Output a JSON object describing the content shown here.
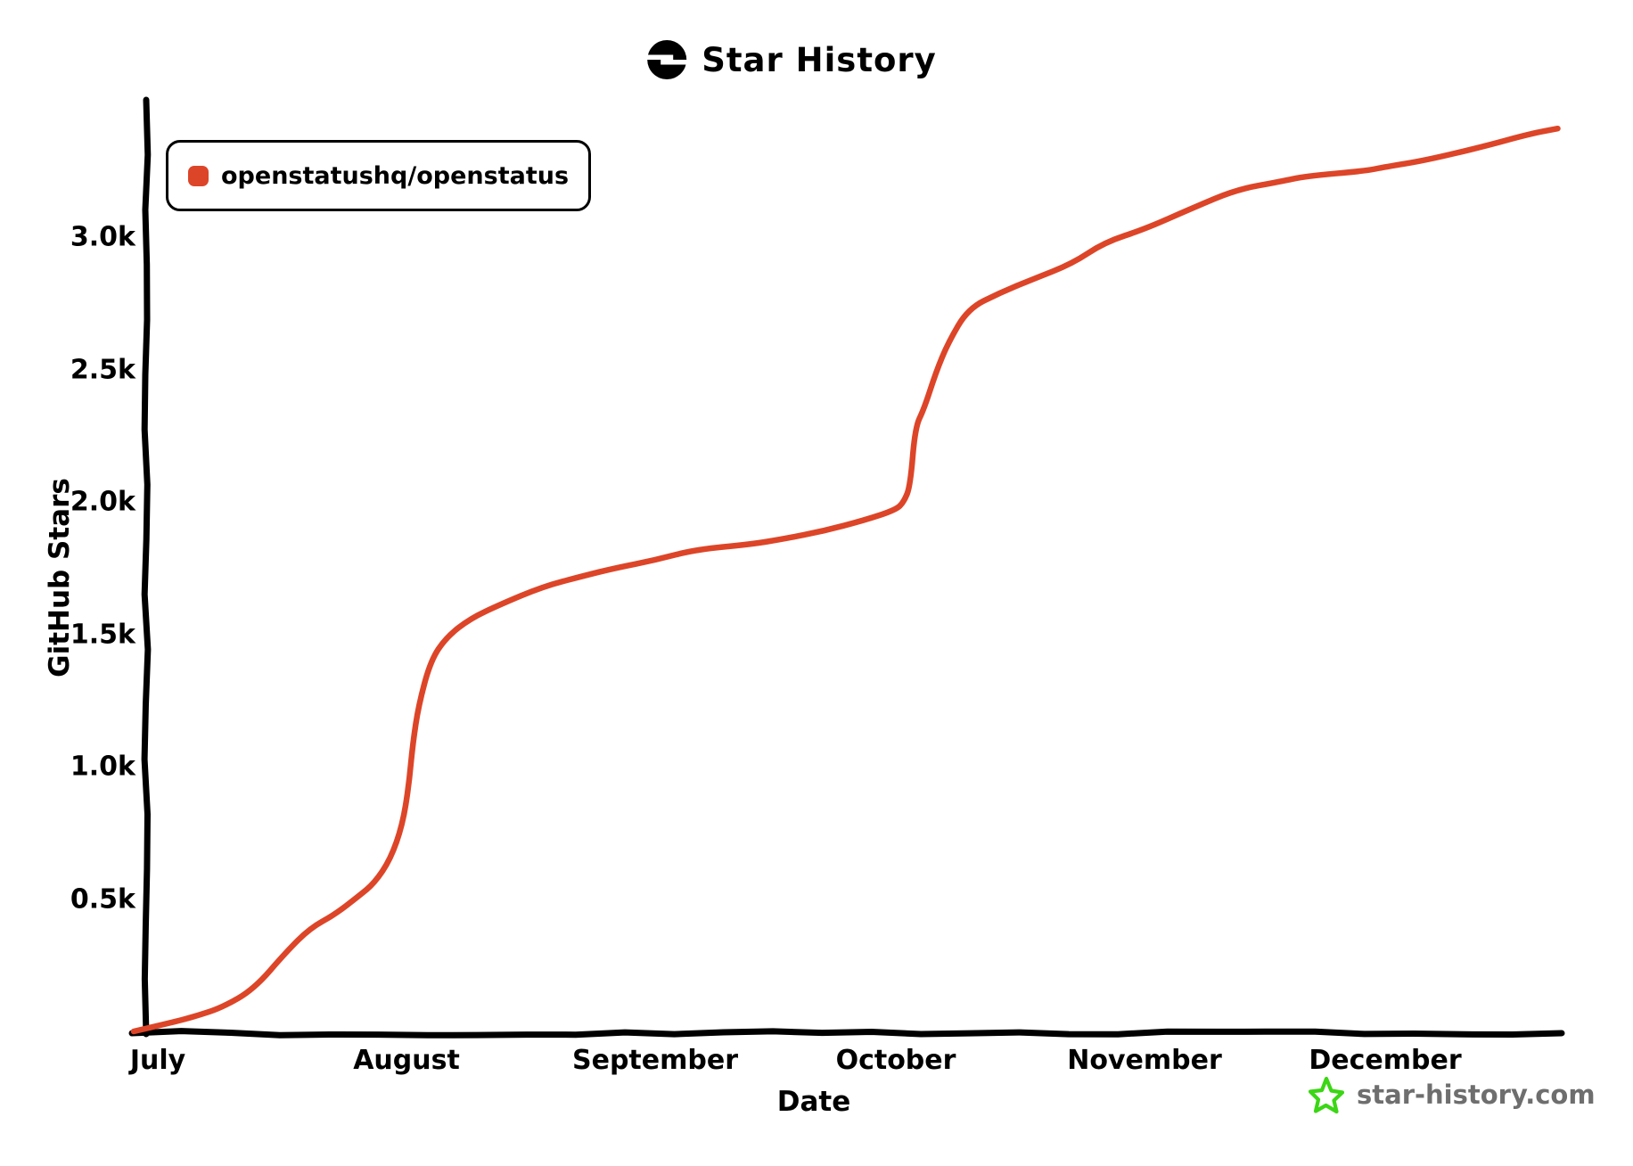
{
  "title": {
    "text": "Star History",
    "logo_icon": "star-history-logo"
  },
  "legend": {
    "items": [
      {
        "label": "openstatushq/openstatus",
        "marker_color": "#dd4528",
        "marker_shape": "rounded-square"
      }
    ]
  },
  "axes": {
    "x": {
      "label": "Date",
      "ticks": [
        "July",
        "August",
        "September",
        "October",
        "November",
        "December"
      ]
    },
    "y": {
      "label": "GitHub Stars",
      "ticks": [
        "0.5k",
        "1.0k",
        "1.5k",
        "2.0k",
        "2.5k",
        "3.0k"
      ],
      "tick_values": [
        500,
        1000,
        1500,
        2000,
        2500,
        3000
      ]
    }
  },
  "watermark": {
    "text": "star-history.com",
    "icon": "green-star",
    "icon_color": "#3bd615",
    "text_color": "#6e6e6e"
  },
  "chart_data": {
    "type": "line",
    "title": "Star History",
    "xlabel": "Date",
    "ylabel": "GitHub Stars",
    "x_unit": "days_since_july_1",
    "x_tick_labels": [
      "July",
      "August",
      "September",
      "October",
      "November",
      "December"
    ],
    "x_tick_days": [
      0,
      31,
      62,
      92,
      123,
      153
    ],
    "x_range_days": [
      -3,
      175
    ],
    "ylim": [
      0,
      3450
    ],
    "grid": false,
    "legend_position": "top-left",
    "line_color": "#dd4528",
    "axis_color": "#000000",
    "series": [
      {
        "name": "openstatushq/openstatus",
        "color": "#dd4528",
        "points": [
          [
            -3,
            0
          ],
          [
            2,
            35
          ],
          [
            5,
            60
          ],
          [
            8,
            90
          ],
          [
            12,
            160
          ],
          [
            16,
            300
          ],
          [
            19,
            390
          ],
          [
            22,
            440
          ],
          [
            25,
            510
          ],
          [
            27,
            560
          ],
          [
            29,
            650
          ],
          [
            30.5,
            780
          ],
          [
            31.3,
            930
          ],
          [
            31.8,
            1090
          ],
          [
            32.5,
            1230
          ],
          [
            34,
            1400
          ],
          [
            36,
            1490
          ],
          [
            39,
            1560
          ],
          [
            42.5,
            1610
          ],
          [
            48,
            1680
          ],
          [
            53,
            1720
          ],
          [
            57,
            1750
          ],
          [
            62,
            1780
          ],
          [
            67,
            1820
          ],
          [
            74,
            1840
          ],
          [
            78,
            1860
          ],
          [
            83,
            1890
          ],
          [
            88,
            1930
          ],
          [
            92,
            1970
          ],
          [
            93,
            2000
          ],
          [
            93.8,
            2060
          ],
          [
            94.4,
            2280
          ],
          [
            95.5,
            2350
          ],
          [
            97,
            2490
          ],
          [
            98.5,
            2600
          ],
          [
            101,
            2730
          ],
          [
            105,
            2790
          ],
          [
            109,
            2840
          ],
          [
            114,
            2900
          ],
          [
            118,
            2980
          ],
          [
            123,
            3030
          ],
          [
            129,
            3110
          ],
          [
            134.5,
            3180
          ],
          [
            140,
            3210
          ],
          [
            143,
            3230
          ],
          [
            150.5,
            3250
          ],
          [
            153,
            3265
          ],
          [
            158,
            3290
          ],
          [
            165,
            3340
          ],
          [
            171,
            3390
          ],
          [
            174.5,
            3410
          ]
        ]
      }
    ]
  }
}
